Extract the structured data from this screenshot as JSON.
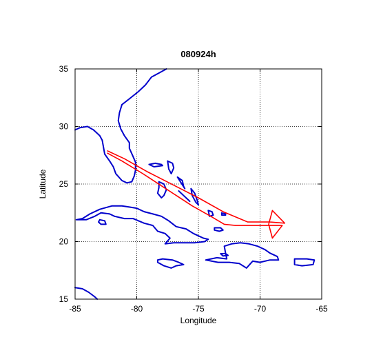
{
  "chart_data": {
    "type": "map",
    "title": "080924h",
    "xlabel": "Longitude",
    "ylabel": "Latitude",
    "xlim": [
      -85,
      -65
    ],
    "ylim": [
      15,
      35
    ],
    "xticks": [
      -85,
      -80,
      -75,
      -70,
      -65
    ],
    "yticks": [
      15,
      20,
      25,
      30,
      35
    ],
    "grid": true,
    "colors": {
      "coastline": "#0000cc",
      "track": "#ff0000",
      "grid": "#000000",
      "axes": "#000000"
    },
    "coastlines": [
      {
        "name": "florida-east-coast",
        "points": [
          [
            -77.6,
            35.0
          ],
          [
            -78.1,
            34.7
          ],
          [
            -78.8,
            34.3
          ],
          [
            -79.3,
            33.6
          ],
          [
            -79.9,
            33.0
          ],
          [
            -80.6,
            32.4
          ],
          [
            -81.2,
            31.9
          ],
          [
            -81.4,
            31.2
          ],
          [
            -81.5,
            30.5
          ],
          [
            -81.3,
            29.8
          ],
          [
            -81.0,
            29.2
          ],
          [
            -80.6,
            28.6
          ],
          [
            -80.6,
            28.1
          ],
          [
            -80.3,
            27.4
          ],
          [
            -80.1,
            26.9
          ],
          [
            -80.1,
            26.2
          ],
          [
            -80.2,
            25.7
          ],
          [
            -80.4,
            25.2
          ],
          [
            -80.8,
            25.1
          ]
        ]
      },
      {
        "name": "florida-west-coast",
        "points": [
          [
            -80.8,
            25.1
          ],
          [
            -81.2,
            25.3
          ],
          [
            -81.7,
            25.9
          ],
          [
            -81.9,
            26.5
          ],
          [
            -82.2,
            27.0
          ],
          [
            -82.6,
            27.6
          ],
          [
            -82.7,
            28.2
          ],
          [
            -82.8,
            28.8
          ],
          [
            -83.0,
            29.2
          ],
          [
            -83.5,
            29.7
          ],
          [
            -84.0,
            30.0
          ],
          [
            -84.6,
            29.9
          ],
          [
            -85.0,
            29.7
          ]
        ]
      },
      {
        "name": "andros-island",
        "points": [
          [
            -78.2,
            25.2
          ],
          [
            -77.8,
            25.0
          ],
          [
            -77.6,
            24.5
          ],
          [
            -77.8,
            24.0
          ],
          [
            -78.0,
            23.8
          ],
          [
            -78.3,
            24.2
          ],
          [
            -78.2,
            24.7
          ],
          [
            -78.2,
            25.2
          ]
        ]
      },
      {
        "name": "grand-bahama",
        "points": [
          [
            -79.0,
            26.7
          ],
          [
            -78.5,
            26.8
          ],
          [
            -78.0,
            26.7
          ],
          [
            -77.9,
            26.6
          ],
          [
            -78.6,
            26.5
          ],
          [
            -79.0,
            26.7
          ]
        ]
      },
      {
        "name": "abaco",
        "points": [
          [
            -77.5,
            27.0
          ],
          [
            -77.1,
            26.8
          ],
          [
            -77.0,
            26.4
          ],
          [
            -77.2,
            25.9
          ],
          [
            -77.4,
            26.3
          ],
          [
            -77.5,
            27.0
          ]
        ]
      },
      {
        "name": "eleuthera",
        "points": [
          [
            -76.7,
            25.6
          ],
          [
            -76.3,
            25.3
          ],
          [
            -76.2,
            24.8
          ],
          [
            -76.1,
            24.6
          ],
          [
            -76.4,
            25.1
          ],
          [
            -76.7,
            25.6
          ]
        ]
      },
      {
        "name": "cat-long-island",
        "points": [
          [
            -75.6,
            24.6
          ],
          [
            -75.3,
            24.2
          ],
          [
            -75.1,
            23.6
          ],
          [
            -75.0,
            23.2
          ],
          [
            -75.2,
            23.4
          ],
          [
            -75.5,
            24.0
          ],
          [
            -75.6,
            24.6
          ]
        ]
      },
      {
        "name": "exuma",
        "points": [
          [
            -76.6,
            24.4
          ],
          [
            -76.2,
            24.0
          ],
          [
            -75.8,
            23.6
          ],
          [
            -75.7,
            23.5
          ]
        ]
      },
      {
        "name": "inagua",
        "points": [
          [
            -73.7,
            21.2
          ],
          [
            -73.2,
            21.2
          ],
          [
            -73.0,
            21.0
          ],
          [
            -73.3,
            20.9
          ],
          [
            -73.7,
            21.0
          ],
          [
            -73.7,
            21.2
          ]
        ]
      },
      {
        "name": "acklins-crooked",
        "points": [
          [
            -74.2,
            22.7
          ],
          [
            -73.9,
            22.6
          ],
          [
            -73.8,
            22.3
          ],
          [
            -74.1,
            22.2
          ],
          [
            -74.2,
            22.7
          ]
        ]
      },
      {
        "name": "mayaguana",
        "points": [
          [
            -73.1,
            22.5
          ],
          [
            -72.8,
            22.4
          ],
          [
            -72.8,
            22.3
          ],
          [
            -73.1,
            22.3
          ],
          [
            -73.1,
            22.5
          ]
        ]
      },
      {
        "name": "cuba",
        "points": [
          [
            -84.9,
            21.9
          ],
          [
            -84.4,
            22.0
          ],
          [
            -83.8,
            22.4
          ],
          [
            -83.0,
            22.8
          ],
          [
            -82.0,
            23.1
          ],
          [
            -81.2,
            23.1
          ],
          [
            -80.6,
            23.0
          ],
          [
            -80.0,
            22.9
          ],
          [
            -79.4,
            22.6
          ],
          [
            -78.7,
            22.4
          ],
          [
            -78.0,
            22.2
          ],
          [
            -77.4,
            21.8
          ],
          [
            -76.8,
            21.3
          ],
          [
            -76.0,
            21.1
          ],
          [
            -75.4,
            20.7
          ],
          [
            -74.6,
            20.3
          ],
          [
            -74.2,
            20.2
          ],
          [
            -74.5,
            20.0
          ],
          [
            -75.3,
            19.9
          ],
          [
            -76.3,
            19.9
          ],
          [
            -77.0,
            19.9
          ],
          [
            -77.7,
            19.8
          ],
          [
            -77.3,
            20.3
          ],
          [
            -77.7,
            20.7
          ],
          [
            -78.3,
            20.9
          ],
          [
            -78.7,
            21.4
          ],
          [
            -79.4,
            21.6
          ],
          [
            -80.3,
            22.0
          ],
          [
            -81.0,
            22.0
          ],
          [
            -81.8,
            22.2
          ],
          [
            -82.2,
            22.4
          ],
          [
            -82.9,
            22.5
          ],
          [
            -83.4,
            22.2
          ],
          [
            -84.1,
            21.9
          ],
          [
            -84.9,
            21.9
          ]
        ]
      },
      {
        "name": "isla-de-la-juventud",
        "points": [
          [
            -83.0,
            21.9
          ],
          [
            -82.6,
            21.8
          ],
          [
            -82.5,
            21.5
          ],
          [
            -82.9,
            21.5
          ],
          [
            -83.1,
            21.7
          ],
          [
            -83.0,
            21.9
          ]
        ]
      },
      {
        "name": "jamaica",
        "points": [
          [
            -78.3,
            18.4
          ],
          [
            -77.9,
            18.5
          ],
          [
            -77.1,
            18.4
          ],
          [
            -76.6,
            18.2
          ],
          [
            -76.2,
            18.0
          ],
          [
            -76.8,
            17.9
          ],
          [
            -77.2,
            17.7
          ],
          [
            -77.8,
            17.9
          ],
          [
            -78.3,
            18.2
          ],
          [
            -78.3,
            18.4
          ]
        ]
      },
      {
        "name": "hispaniola",
        "points": [
          [
            -74.4,
            18.4
          ],
          [
            -73.5,
            18.6
          ],
          [
            -72.7,
            18.5
          ],
          [
            -72.8,
            19.0
          ],
          [
            -72.9,
            19.6
          ],
          [
            -72.3,
            19.8
          ],
          [
            -71.6,
            19.9
          ],
          [
            -70.9,
            19.8
          ],
          [
            -70.2,
            19.6
          ],
          [
            -69.6,
            19.3
          ],
          [
            -69.2,
            19.0
          ],
          [
            -68.6,
            18.7
          ],
          [
            -68.5,
            18.4
          ],
          [
            -69.2,
            18.4
          ],
          [
            -70.0,
            18.2
          ],
          [
            -70.6,
            18.3
          ],
          [
            -71.1,
            17.7
          ],
          [
            -71.7,
            18.1
          ],
          [
            -72.5,
            18.2
          ],
          [
            -73.4,
            18.2
          ],
          [
            -74.4,
            18.4
          ]
        ]
      },
      {
        "name": "gonave",
        "points": [
          [
            -73.2,
            18.95
          ],
          [
            -72.8,
            18.95
          ],
          [
            -72.6,
            18.8
          ],
          [
            -73.0,
            18.75
          ],
          [
            -73.2,
            18.95
          ]
        ]
      },
      {
        "name": "puerto-rico",
        "points": [
          [
            -67.2,
            18.5
          ],
          [
            -66.2,
            18.5
          ],
          [
            -65.6,
            18.4
          ],
          [
            -65.7,
            18.0
          ],
          [
            -66.6,
            17.9
          ],
          [
            -67.2,
            18.0
          ],
          [
            -67.2,
            18.5
          ]
        ]
      },
      {
        "name": "yucatan-tip",
        "points": [
          [
            -85.0,
            16.0
          ],
          [
            -84.4,
            15.9
          ],
          [
            -83.9,
            15.6
          ],
          [
            -83.4,
            15.2
          ],
          [
            -83.2,
            15.0
          ]
        ]
      }
    ],
    "track": [
      [
        -82.4,
        27.9
      ],
      [
        -81.0,
        27.2
      ],
      [
        -79.2,
        26.1
      ],
      [
        -77.0,
        24.9
      ],
      [
        -75.0,
        23.8
      ],
      [
        -73.0,
        22.6
      ],
      [
        -71.0,
        21.7
      ],
      [
        -69.2,
        21.7
      ],
      [
        -68.0,
        21.6
      ],
      [
        -69.0,
        22.7
      ],
      [
        -69.3,
        21.5
      ],
      [
        -69.0,
        20.3
      ],
      [
        -68.2,
        21.4
      ],
      [
        -69.5,
        21.4
      ],
      [
        -72.0,
        21.4
      ],
      [
        -72.9,
        21.5
      ],
      [
        -74.0,
        22.2
      ],
      [
        -75.5,
        23.1
      ],
      [
        -77.5,
        24.5
      ],
      [
        -79.5,
        25.9
      ],
      [
        -81.2,
        27.0
      ],
      [
        -82.4,
        27.7
      ]
    ]
  }
}
